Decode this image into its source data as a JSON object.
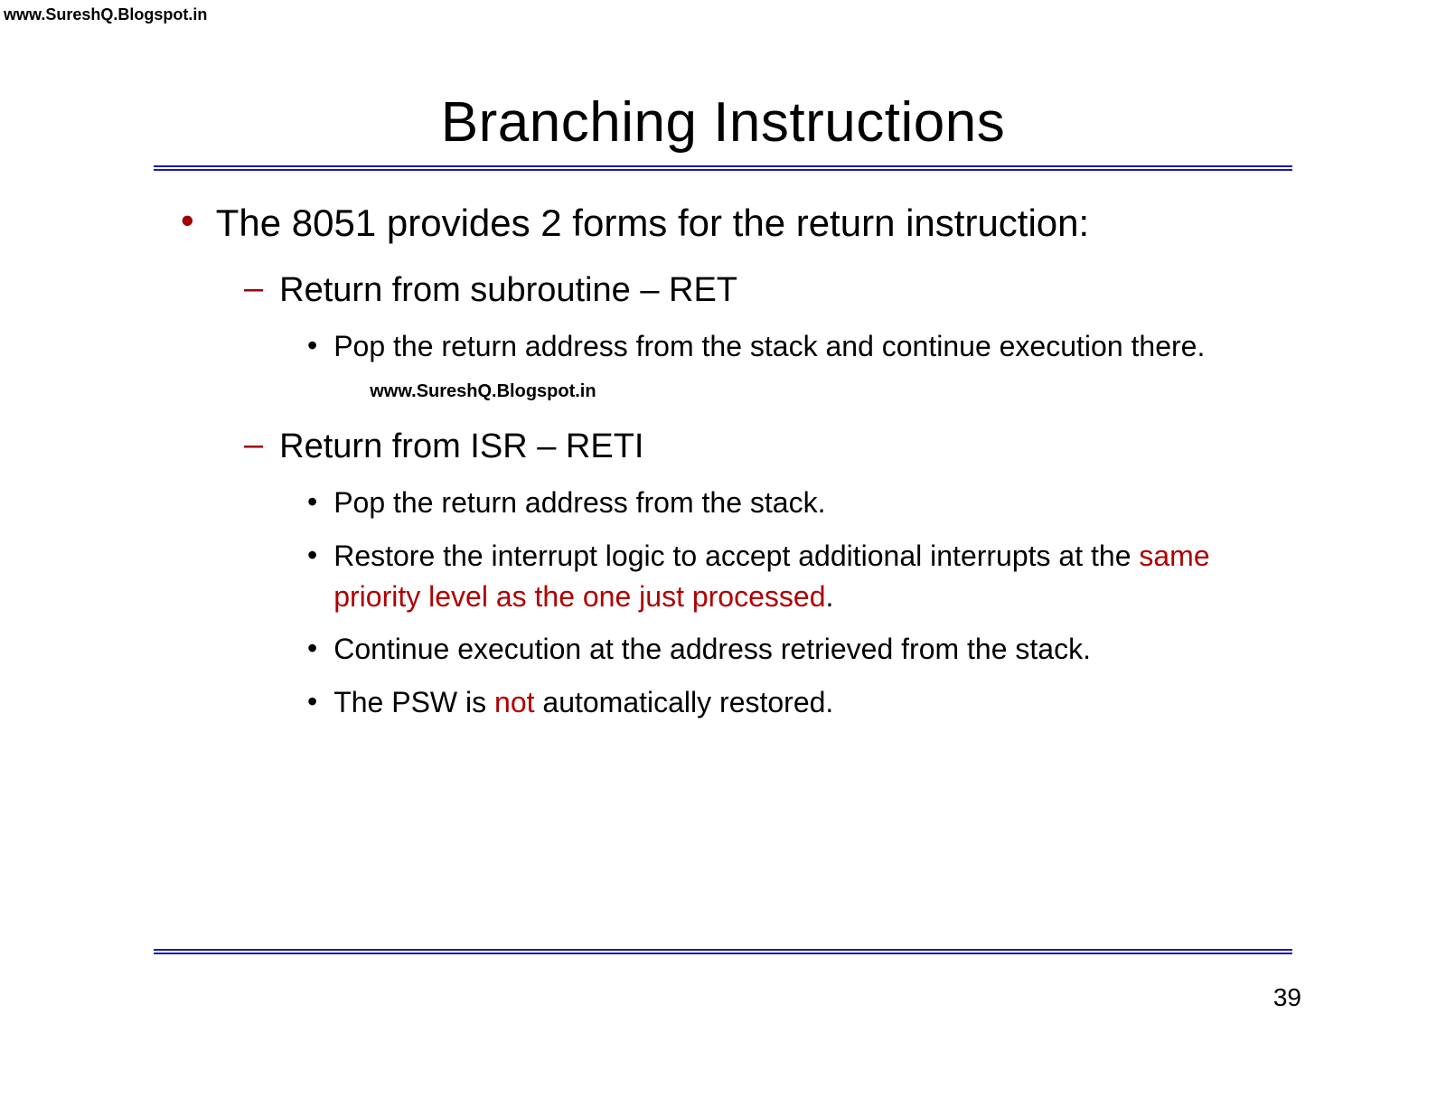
{
  "watermark_top": "www.SureshQ.Blogspot.in",
  "watermark_mid": "www.SureshQ.Blogspot.in",
  "title": "Branching Instructions",
  "bullet1": "The 8051 provides 2 forms for the return instruction:",
  "sub1": "Return from subroutine – RET",
  "sub1_detail1_a": "Pop the return address from the stack and continue execution there.",
  "sub2": "Return from ISR – RETI",
  "sub2_detail1": "Pop the return address from the stack.",
  "sub2_detail2_a": "Restore the interrupt logic to accept additional interrupts at the ",
  "sub2_detail2_b": "same priority level as the one just processed",
  "sub2_detail2_c": ".",
  "sub2_detail3": "Continue execution at the address retrieved from the stack.",
  "sub2_detail4_a": "The PSW is ",
  "sub2_detail4_b": "not",
  "sub2_detail4_c": " automatically restored.",
  "page_number": "39",
  "colors": {
    "accent_bullet": "#a00000",
    "highlight_text": "#b00000",
    "divider": "#1a1aae",
    "text": "#000000",
    "background": "#ffffff"
  }
}
